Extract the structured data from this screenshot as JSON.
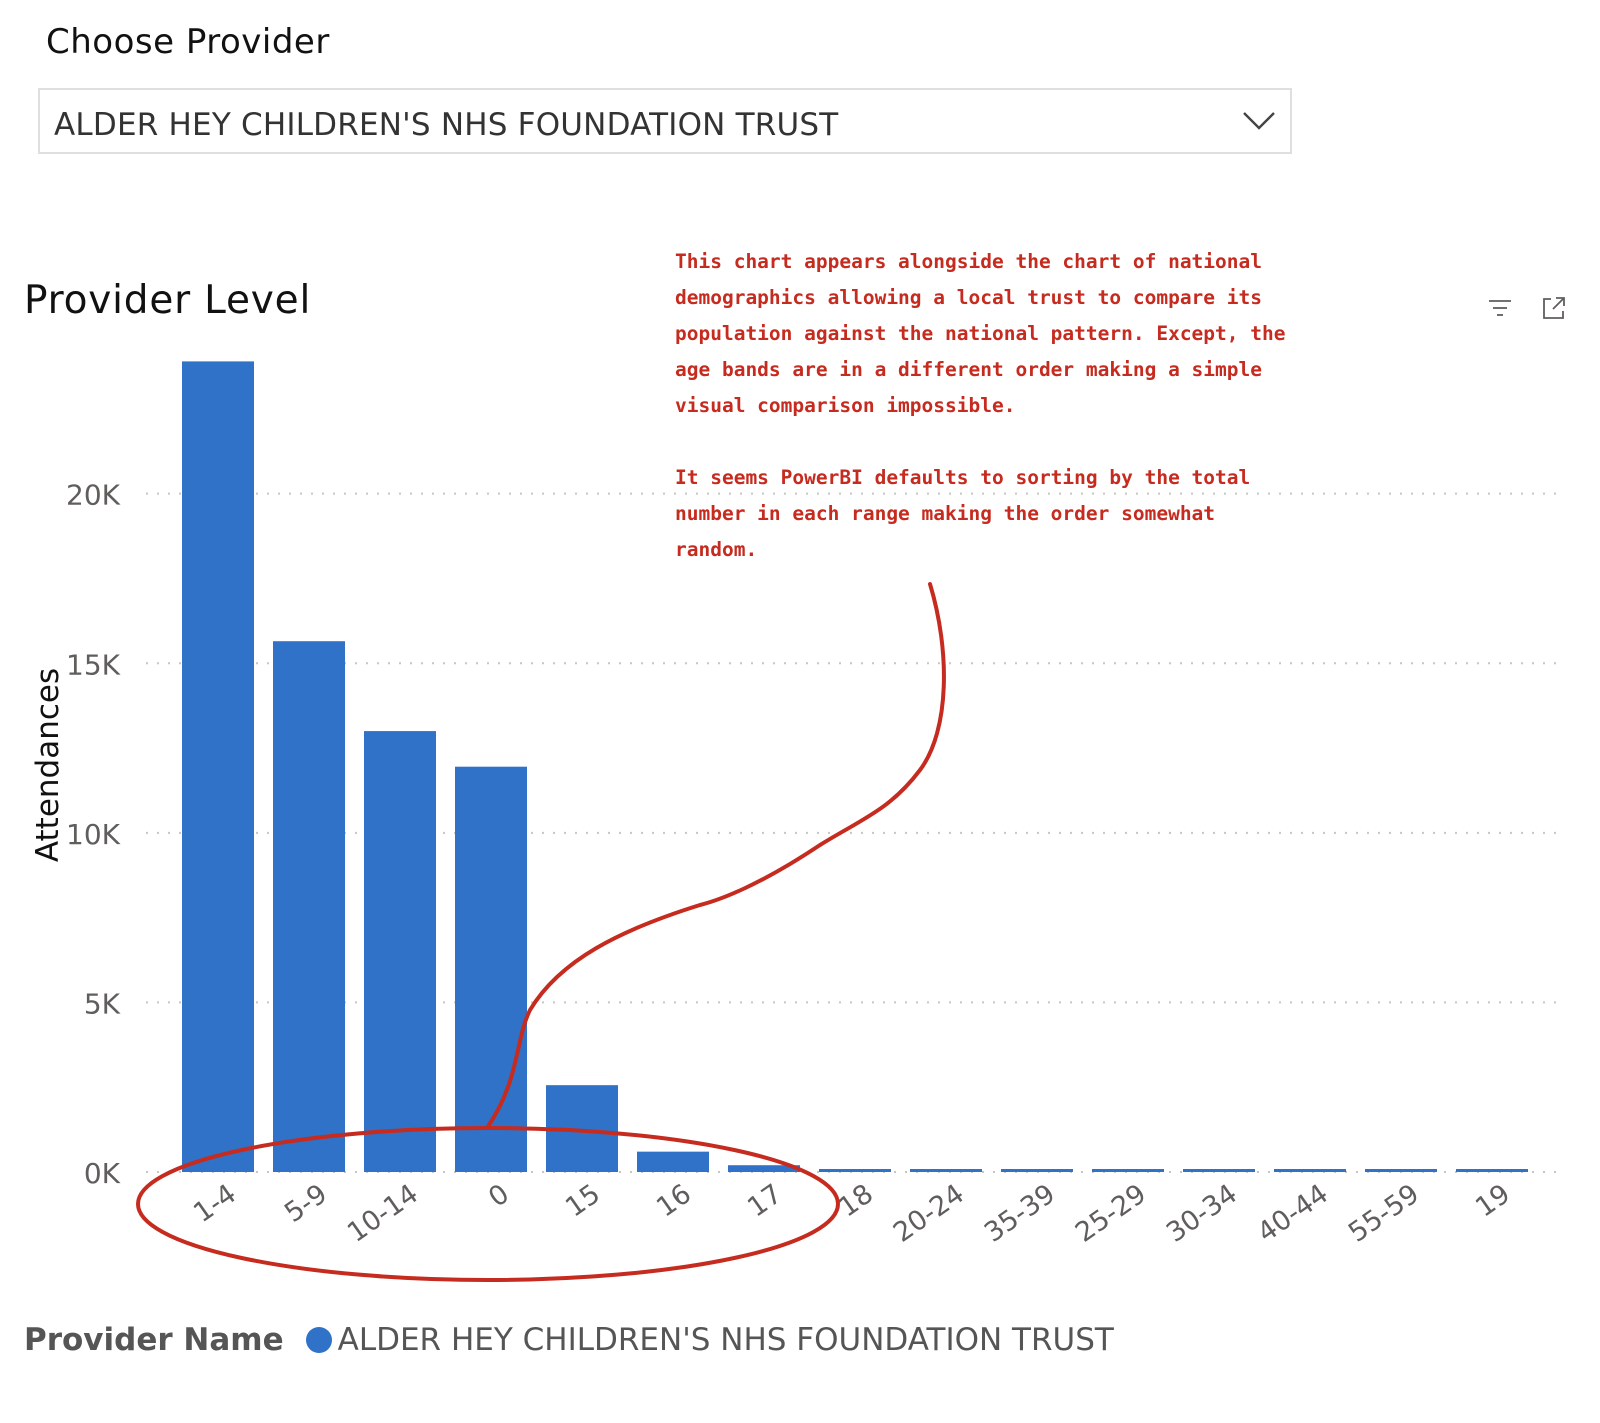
{
  "slicer": {
    "title": "Choose Provider",
    "selected": "ALDER HEY CHILDREN'S NHS FOUNDATION TRUST",
    "chevron_icon": "chevron-down-icon"
  },
  "visual": {
    "title": "Provider Level",
    "header_icons": [
      "filter-icon",
      "focus-mode-icon"
    ]
  },
  "annotation": {
    "paragraphs": [
      "This chart appears alongside the chart of national demographics allowing a local trust to compare its population against the national pattern. Except, the age bands are in a different order making a simple visual comparison impossible.",
      "It seems PowerBI defaults to sorting by the total number in each range making the order somewhat random."
    ],
    "color": "#c62b1f"
  },
  "chart_data": {
    "type": "bar",
    "categories": [
      "1-4",
      "5-9",
      "10-14",
      "0",
      "15",
      "16",
      "17",
      "18",
      "20-24",
      "35-39",
      "25-29",
      "30-34",
      "40-44",
      "55-59",
      "19"
    ],
    "values": [
      23900,
      15650,
      13000,
      11950,
      2560,
      600,
      200,
      50,
      45,
      40,
      35,
      30,
      25,
      20,
      15
    ],
    "ylabel": "Attendances",
    "yticks": [
      0,
      5000,
      10000,
      15000,
      20000
    ],
    "ytick_labels": [
      "0K",
      "5K",
      "10K",
      "15K",
      "20K"
    ],
    "ylim": [
      0,
      24000
    ],
    "grid": true,
    "legend_position": "bottom-left",
    "legend": {
      "title": "Provider Name",
      "series_name": "ALDER HEY CHILDREN'S NHS FOUNDATION TRUST"
    },
    "bar_color": "#2f72c7",
    "highlight_color": "#c62b1f"
  }
}
